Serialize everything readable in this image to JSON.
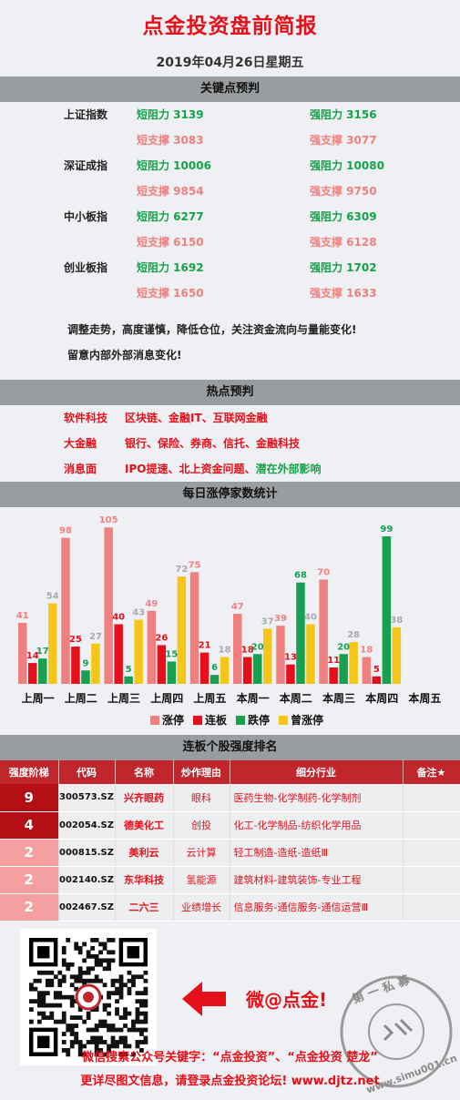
{
  "header": {
    "title": "点金投资盘前简报",
    "date": "2019年04月26日星期五"
  },
  "sections": {
    "key": "关键点预判",
    "hot": "热点预判",
    "stats": "每日涨停家数统计",
    "rank": "连板个股强度排名"
  },
  "key_points": [
    {
      "name": "上证指数",
      "short_res": "短阻力 3139",
      "strong_res": "强阻力 3156",
      "short_sup": "短支撑 3083",
      "strong_sup": "强支撑 3077"
    },
    {
      "name": "深证成指",
      "short_res": "短阻力 10006",
      "strong_res": "强阻力 10080",
      "short_sup": "短支撑 9854",
      "strong_sup": "强支撑 9750"
    },
    {
      "name": "中小板指",
      "short_res": "短阻力 6277",
      "strong_res": "强阻力 6309",
      "short_sup": "短支撑 6150",
      "strong_sup": "强支撑 6128"
    },
    {
      "name": "创业板指",
      "short_res": "短阻力 1692",
      "strong_res": "强阻力 1702",
      "short_sup": "短支撑 1650",
      "strong_sup": "强支撑 1633"
    }
  ],
  "notes": [
    "调整走势，高度谨慎，降低仓位，关注资金流向与量能变化!",
    "留意内部外部消息变化!"
  ],
  "hot": [
    {
      "key": "软件科技",
      "value": "区块链、金融IT、互联网金融"
    },
    {
      "key": "大金融",
      "value": "银行、保险、券商、信托、金融科技"
    },
    {
      "key": "消息面",
      "value": "IPO提速、北上资金问题、潜在外部影响"
    }
  ],
  "chart_data": {
    "type": "bar",
    "categories": [
      "上周一",
      "上周二",
      "上周三",
      "上周四",
      "上周五",
      "本周一",
      "本周二",
      "本周三",
      "本周四",
      "本周五"
    ],
    "series": [
      {
        "name": "涨停",
        "color": "#f08080",
        "values": [
          41,
          98,
          105,
          49,
          75,
          47,
          39,
          70,
          18,
          null
        ]
      },
      {
        "name": "连板",
        "color": "#e6101a",
        "values": [
          14,
          25,
          40,
          26,
          21,
          18,
          13,
          11,
          5,
          null
        ]
      },
      {
        "name": "跌停",
        "color": "#16a050",
        "values": [
          17,
          9,
          5,
          15,
          6,
          20,
          68,
          20,
          99,
          null
        ]
      },
      {
        "name": "曾涨停",
        "color": "#f5c518",
        "values": [
          54,
          27,
          43,
          72,
          18,
          37,
          40,
          28,
          38,
          null
        ]
      }
    ],
    "legend_position": "bottom",
    "ylim": [
      0,
      110
    ]
  },
  "rank": {
    "headers": [
      "强度阶梯",
      "代码",
      "名称",
      "炒作理由",
      "细分行业",
      "备注★"
    ],
    "rows": [
      {
        "level": "9",
        "code": "300573.SZ",
        "name": "兴齐眼药",
        "reason": "眼科",
        "industry": "医药生物-化学制药-化学制剂",
        "note": "",
        "color": "#b50f16"
      },
      {
        "level": "4",
        "code": "002054.SZ",
        "name": "德美化工",
        "reason": "创投",
        "industry": "化工-化学制品-纺织化学用品",
        "note": "",
        "color": "#b50f16"
      },
      {
        "level": "2",
        "code": "000815.SZ",
        "name": "美利云",
        "reason": "云计算",
        "industry": "轻工制造-造纸-造纸Ⅲ",
        "note": "",
        "color": "#f4a0a0"
      },
      {
        "level": "2",
        "code": "002140.SZ",
        "name": "东华科技",
        "reason": "氢能源",
        "industry": "建筑材料-建筑装饰-专业工程",
        "note": "",
        "color": "#f4a0a0"
      },
      {
        "level": "2",
        "code": "002467.SZ",
        "name": "二六三",
        "reason": "业绩增长",
        "industry": "信息服务-通信服务-通信运营Ⅲ",
        "note": "",
        "color": "#f4a0a0"
      }
    ]
  },
  "promo": {
    "weibo": "微@点金!",
    "stamp_text": "第一私募",
    "stamp_url": "www.simu001.cn"
  },
  "footer": {
    "line1": "微信搜索公众号关键字：“点金投资”、“点金投资 楚龙”",
    "line2": "更详尽图文信息，请登录点金投资论坛!   www.djtz.net"
  }
}
